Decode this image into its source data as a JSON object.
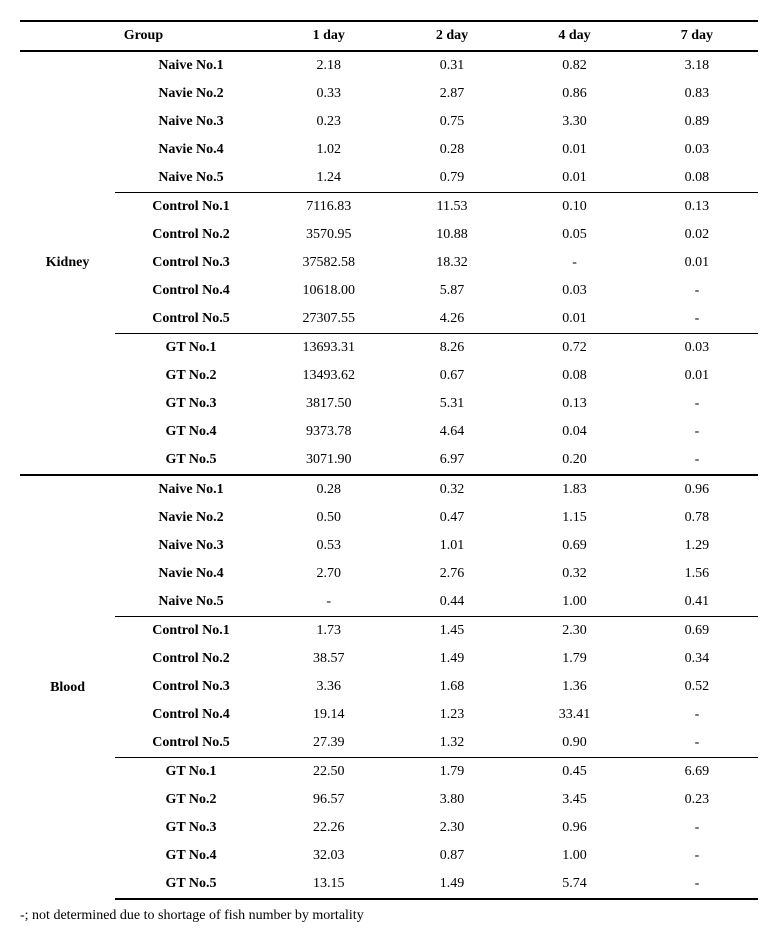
{
  "headers": {
    "group": "Group",
    "d1": "1 day",
    "d2": "2 day",
    "d4": "4 day",
    "d7": "7 day"
  },
  "sections": [
    {
      "name": "Kidney",
      "blocks": [
        {
          "rows": [
            {
              "label": "Naive No.1",
              "d1": "2.18",
              "d2": "0.31",
              "d4": "0.82",
              "d7": "3.18"
            },
            {
              "label": "Navie No.2",
              "d1": "0.33",
              "d2": "2.87",
              "d4": "0.86",
              "d7": "0.83"
            },
            {
              "label": "Naive No.3",
              "d1": "0.23",
              "d2": "0.75",
              "d4": "3.30",
              "d7": "0.89"
            },
            {
              "label": "Navie No.4",
              "d1": "1.02",
              "d2": "0.28",
              "d4": "0.01",
              "d7": "0.03"
            },
            {
              "label": "Naive No.5",
              "d1": "1.24",
              "d2": "0.79",
              "d4": "0.01",
              "d7": "0.08"
            }
          ]
        },
        {
          "rows": [
            {
              "label": "Control No.1",
              "d1": "7116.83",
              "d2": "11.53",
              "d4": "0.10",
              "d7": "0.13"
            },
            {
              "label": "Control No.2",
              "d1": "3570.95",
              "d2": "10.88",
              "d4": "0.05",
              "d7": "0.02"
            },
            {
              "label": "Control No.3",
              "d1": "37582.58",
              "d2": "18.32",
              "d4": "-",
              "d7": "0.01"
            },
            {
              "label": "Control No.4",
              "d1": "10618.00",
              "d2": "5.87",
              "d4": "0.03",
              "d7": "-"
            },
            {
              "label": "Control No.5",
              "d1": "27307.55",
              "d2": "4.26",
              "d4": "0.01",
              "d7": "-"
            }
          ]
        },
        {
          "rows": [
            {
              "label": "GT No.1",
              "d1": "13693.31",
              "d2": "8.26",
              "d4": "0.72",
              "d7": "0.03"
            },
            {
              "label": "GT No.2",
              "d1": "13493.62",
              "d2": "0.67",
              "d4": "0.08",
              "d7": "0.01"
            },
            {
              "label": "GT No.3",
              "d1": "3817.50",
              "d2": "5.31",
              "d4": "0.13",
              "d7": "-"
            },
            {
              "label": "GT No.4",
              "d1": "9373.78",
              "d2": "4.64",
              "d4": "0.04",
              "d7": "-"
            },
            {
              "label": "GT No.5",
              "d1": "3071.90",
              "d2": "6.97",
              "d4": "0.20",
              "d7": "-"
            }
          ]
        }
      ]
    },
    {
      "name": "Blood",
      "blocks": [
        {
          "rows": [
            {
              "label": "Naive No.1",
              "d1": "0.28",
              "d2": "0.32",
              "d4": "1.83",
              "d7": "0.96"
            },
            {
              "label": "Navie No.2",
              "d1": "0.50",
              "d2": "0.47",
              "d4": "1.15",
              "d7": "0.78"
            },
            {
              "label": "Naive No.3",
              "d1": "0.53",
              "d2": "1.01",
              "d4": "0.69",
              "d7": "1.29"
            },
            {
              "label": "Navie No.4",
              "d1": "2.70",
              "d2": "2.76",
              "d4": "0.32",
              "d7": "1.56"
            },
            {
              "label": "Naive No.5",
              "d1": "-",
              "d2": "0.44",
              "d4": "1.00",
              "d7": "0.41"
            }
          ]
        },
        {
          "rows": [
            {
              "label": "Control No.1",
              "d1": "1.73",
              "d2": "1.45",
              "d4": "2.30",
              "d7": "0.69"
            },
            {
              "label": "Control No.2",
              "d1": "38.57",
              "d2": "1.49",
              "d4": "1.79",
              "d7": "0.34"
            },
            {
              "label": "Control No.3",
              "d1": "3.36",
              "d2": "1.68",
              "d4": "1.36",
              "d7": "0.52"
            },
            {
              "label": "Control No.4",
              "d1": "19.14",
              "d2": "1.23",
              "d4": "33.41",
              "d7": "-"
            },
            {
              "label": "Control No.5",
              "d1": "27.39",
              "d2": "1.32",
              "d4": "0.90",
              "d7": "-"
            }
          ]
        },
        {
          "rows": [
            {
              "label": "GT No.1",
              "d1": "22.50",
              "d2": "1.79",
              "d4": "0.45",
              "d7": "6.69"
            },
            {
              "label": "GT No.2",
              "d1": "96.57",
              "d2": "3.80",
              "d4": "3.45",
              "d7": "0.23"
            },
            {
              "label": "GT No.3",
              "d1": "22.26",
              "d2": "2.30",
              "d4": "0.96",
              "d7": "-"
            },
            {
              "label": "GT No.4",
              "d1": "32.03",
              "d2": "0.87",
              "d4": "1.00",
              "d7": "-"
            },
            {
              "label": "GT No.5",
              "d1": "13.15",
              "d2": "1.49",
              "d4": "5.74",
              "d7": "-"
            }
          ]
        }
      ]
    }
  ],
  "footnote": "-; not determined due to shortage of fish number by mortality"
}
